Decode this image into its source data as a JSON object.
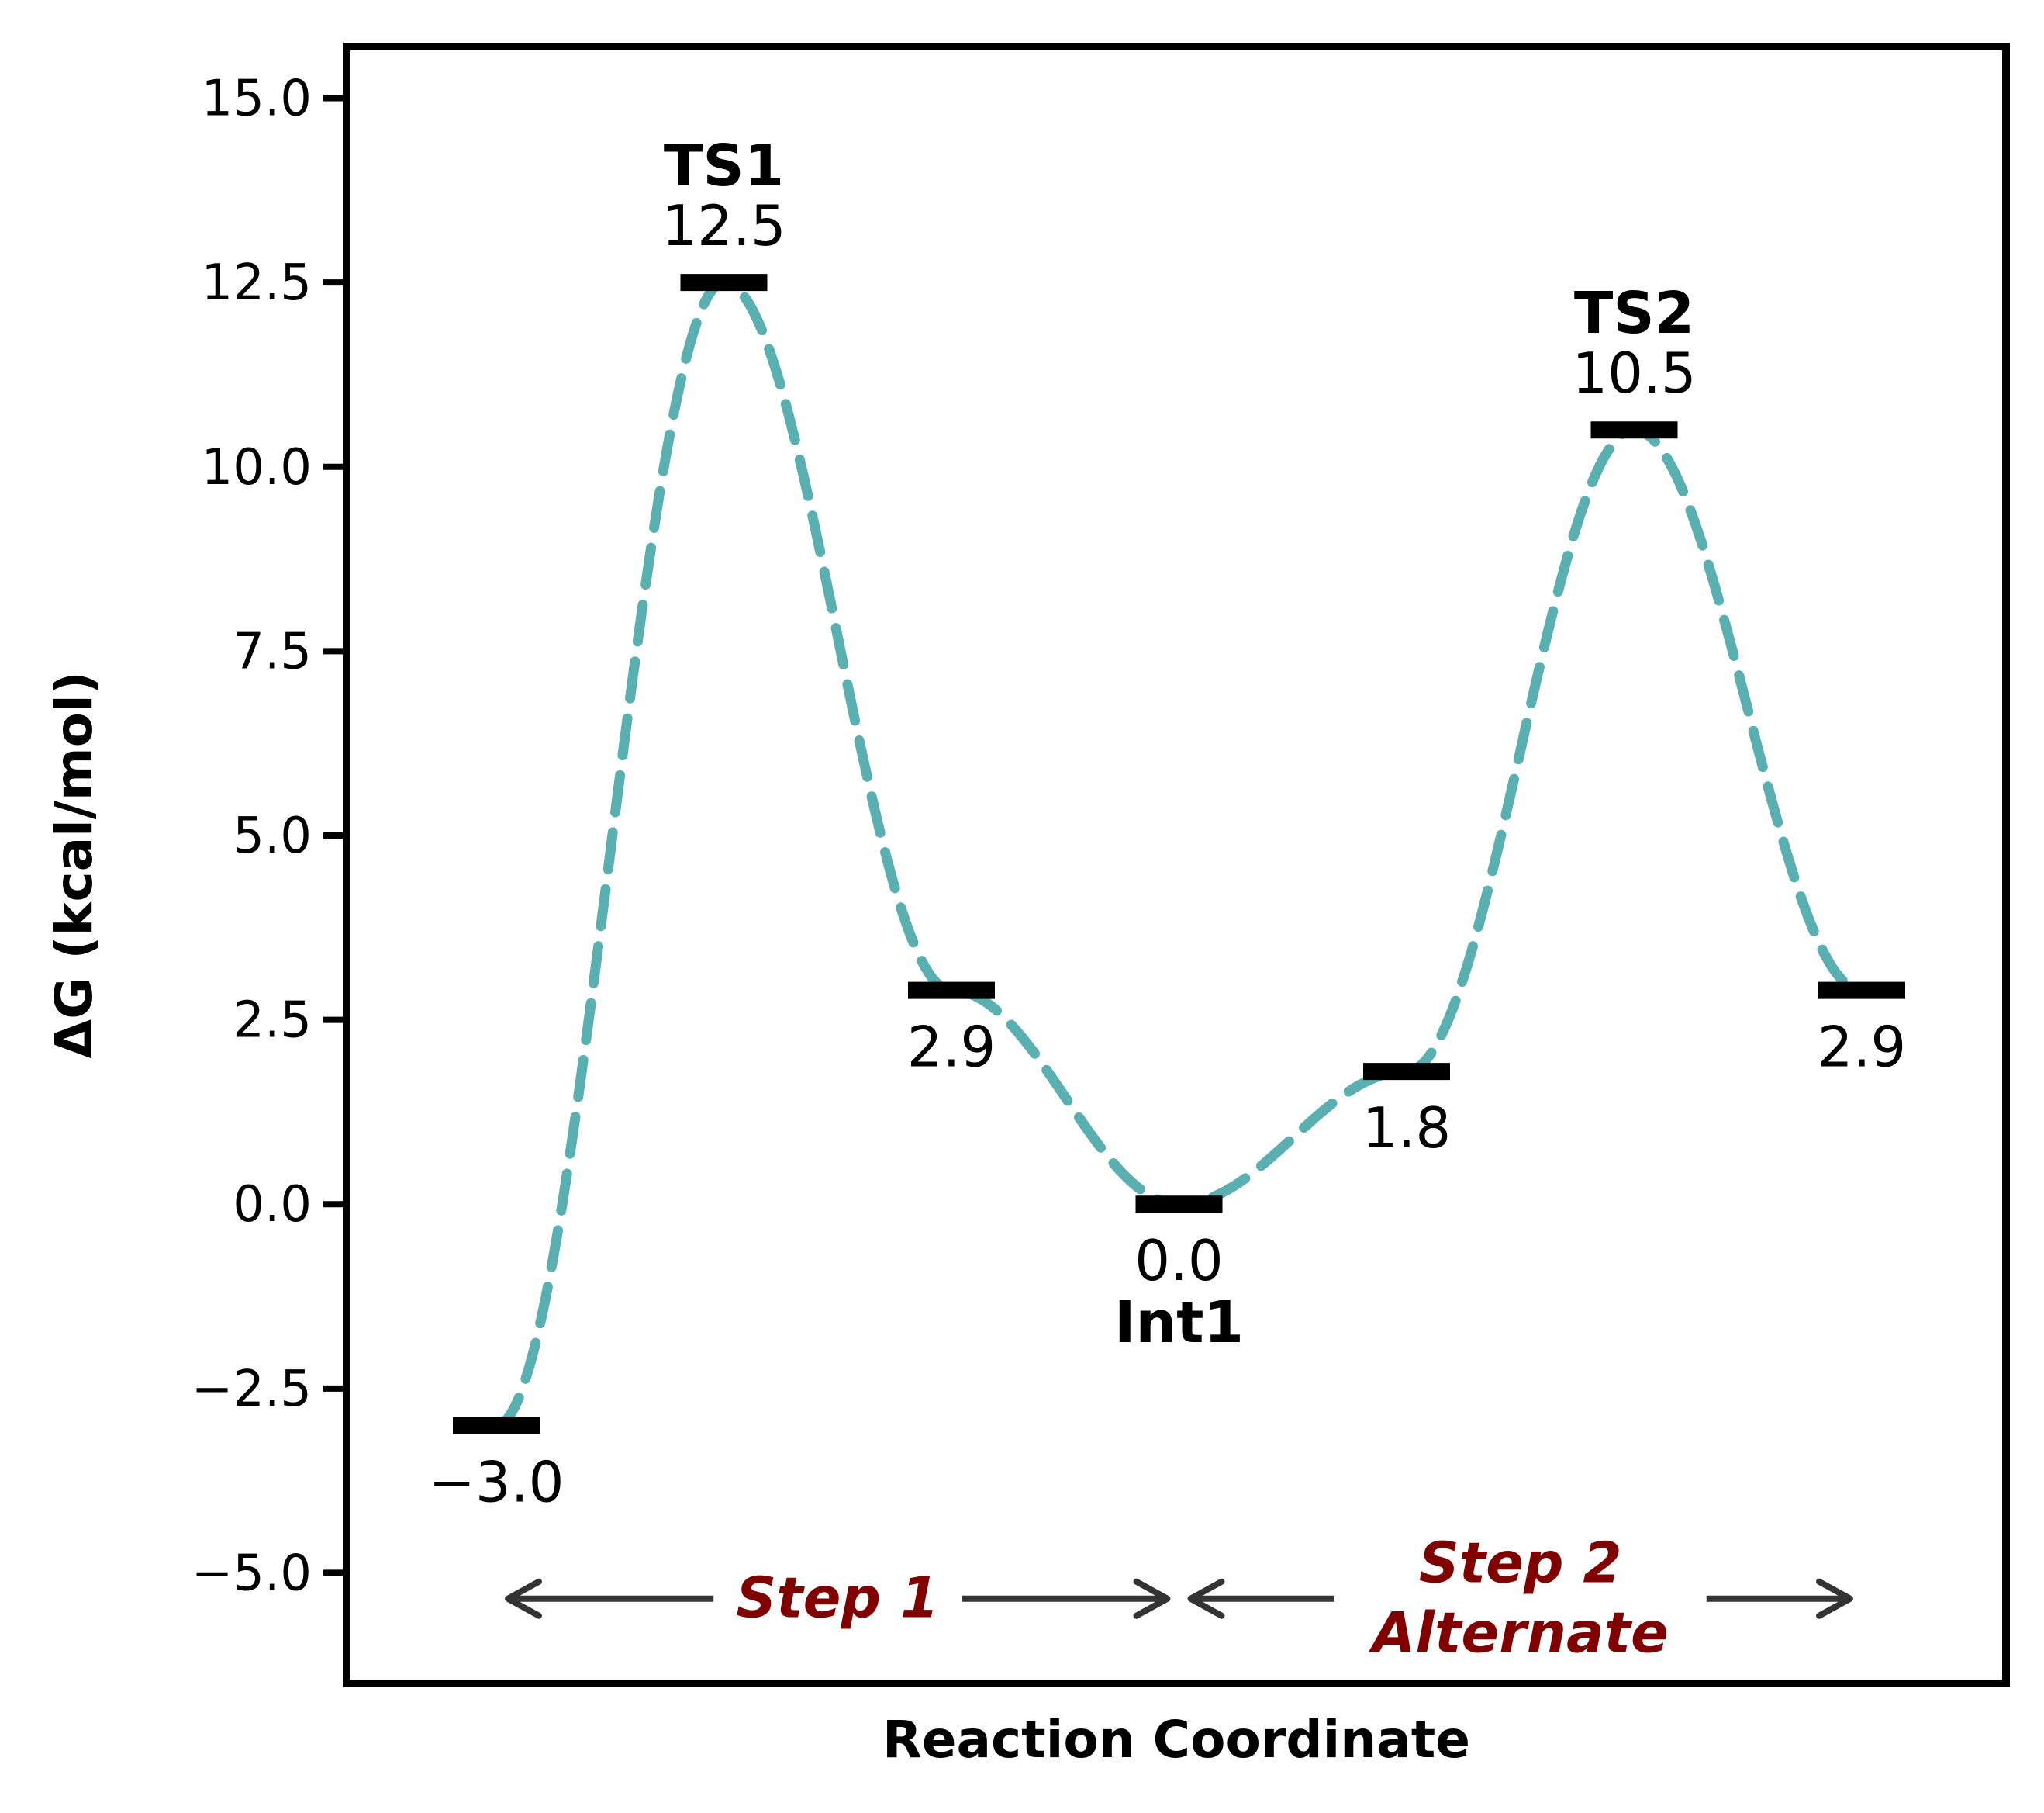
{
  "chart_data": {
    "type": "line",
    "title": "",
    "xlabel": "Reaction Coordinate",
    "ylabel": "ΔG (kcal/mol)",
    "ylim": [
      -6.5,
      15.7
    ],
    "yticks": [
      15.0,
      12.5,
      10.0,
      7.5,
      5.0,
      2.5,
      0.0,
      -2.5,
      -5.0
    ],
    "ytick_labels": [
      "15.0",
      "12.5",
      "10.0",
      "7.5",
      "5.0",
      "2.5",
      "0.0",
      "−2.5",
      "−5.0"
    ],
    "grid": false,
    "line_color": "#5aafb0",
    "line_style": "dashed",
    "levels": [
      {
        "x": 0,
        "energy": -3.0,
        "value_label": "−3.0",
        "state_label": "",
        "label_position": "below"
      },
      {
        "x": 1,
        "energy": 12.5,
        "value_label": "12.5",
        "state_label": "TS1",
        "label_position": "above"
      },
      {
        "x": 2,
        "energy": 2.9,
        "value_label": "2.9",
        "state_label": "",
        "label_position": "below"
      },
      {
        "x": 3,
        "energy": 0.0,
        "value_label": "0.0",
        "state_label": "Int1",
        "label_position": "below"
      },
      {
        "x": 4,
        "energy": 1.8,
        "value_label": "1.8",
        "state_label": "",
        "label_position": "below"
      },
      {
        "x": 5,
        "energy": 10.5,
        "value_label": "10.5",
        "state_label": "TS2",
        "label_position": "above"
      },
      {
        "x": 6,
        "energy": 2.9,
        "value_label": "2.9",
        "state_label": "",
        "label_position": "below"
      }
    ],
    "step_annotations": [
      {
        "lines": [
          "Step 1"
        ],
        "from_x": 0,
        "to_x": 3,
        "color": "#800000"
      },
      {
        "lines": [
          "Step 2",
          "Alternate"
        ],
        "from_x": 3,
        "to_x": 6,
        "color": "#800000"
      }
    ]
  }
}
